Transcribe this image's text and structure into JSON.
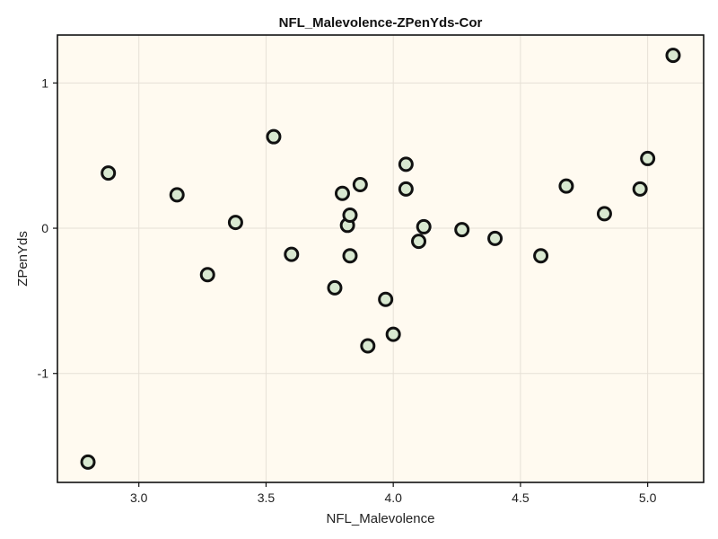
{
  "chart_data": {
    "type": "scatter",
    "title": "NFL_Malevolence-ZPenYds-Cor",
    "xlabel": "NFL_Malevolence",
    "ylabel": "ZPenYds",
    "xlim": [
      2.68,
      5.22
    ],
    "ylim": [
      -1.75,
      1.33
    ],
    "x_ticks": [
      3.0,
      3.5,
      4.0,
      4.5,
      5.0
    ],
    "x_tick_labels": [
      "3.0",
      "3.5",
      "4.0",
      "4.5",
      "5.0"
    ],
    "y_ticks": [
      -1,
      0,
      1
    ],
    "y_tick_labels": [
      "-1",
      "0",
      "1"
    ],
    "grid": true,
    "colors": {
      "plot_background": "#fffaf0",
      "grid": "#e6e0d6",
      "marker_fill": "#d8e8d0",
      "marker_edge": "#111111"
    },
    "points": [
      {
        "x": 2.8,
        "y": -1.61
      },
      {
        "x": 2.88,
        "y": 0.38
      },
      {
        "x": 3.15,
        "y": 0.23
      },
      {
        "x": 3.27,
        "y": -0.32
      },
      {
        "x": 3.38,
        "y": 0.04
      },
      {
        "x": 3.53,
        "y": 0.63
      },
      {
        "x": 3.6,
        "y": -0.18
      },
      {
        "x": 3.77,
        "y": -0.41
      },
      {
        "x": 3.8,
        "y": 0.24
      },
      {
        "x": 3.82,
        "y": 0.02
      },
      {
        "x": 3.83,
        "y": 0.09
      },
      {
        "x": 3.83,
        "y": -0.19
      },
      {
        "x": 3.87,
        "y": 0.3
      },
      {
        "x": 3.9,
        "y": -0.81
      },
      {
        "x": 3.97,
        "y": -0.49
      },
      {
        "x": 4.0,
        "y": -0.73
      },
      {
        "x": 4.05,
        "y": 0.44
      },
      {
        "x": 4.05,
        "y": 0.27
      },
      {
        "x": 4.1,
        "y": -0.09
      },
      {
        "x": 4.12,
        "y": 0.01
      },
      {
        "x": 4.27,
        "y": -0.01
      },
      {
        "x": 4.4,
        "y": -0.07
      },
      {
        "x": 4.58,
        "y": -0.19
      },
      {
        "x": 4.68,
        "y": 0.29
      },
      {
        "x": 4.83,
        "y": 0.1
      },
      {
        "x": 4.97,
        "y": 0.27
      },
      {
        "x": 5.0,
        "y": 0.48
      },
      {
        "x": 5.1,
        "y": 1.19
      }
    ]
  }
}
